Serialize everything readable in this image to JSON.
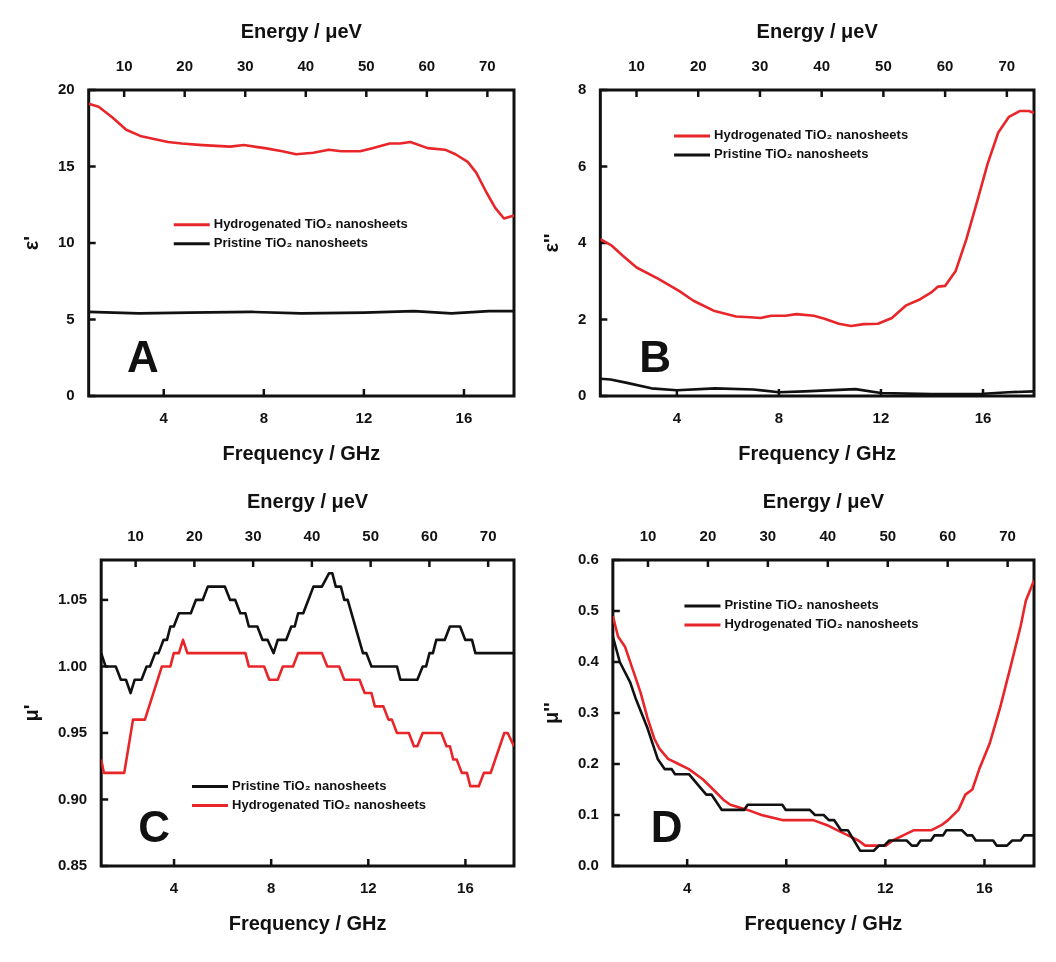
{
  "chart_data": [
    {
      "type": "line",
      "xlabel": "Frequency / GHz",
      "ylabel": "ε'",
      "x2label": "Energy / μeV",
      "xlim": [
        1,
        18
      ],
      "xticks": [
        4,
        8,
        12,
        16
      ],
      "x2lim": [
        4.14,
        74.4
      ],
      "x2ticks": [
        10,
        20,
        30,
        40,
        50,
        60,
        70
      ],
      "ylim": [
        0,
        20
      ],
      "yticks": [
        0,
        5,
        10,
        15,
        20
      ],
      "legend": "center",
      "annotations": [
        "A"
      ],
      "series": [
        {
          "name": "Hydrogenated TiO₂ nanosheets",
          "color": "#e8262a",
          "x": [
            1,
            1.4,
            1.95,
            2.5,
            3.06,
            3.61,
            4.17,
            4.72,
            5.55,
            6.66,
            7.2,
            8.04,
            8.74,
            9.29,
            9.98,
            10.6,
            11.1,
            11.85,
            12.34,
            13.03,
            13.44,
            13.86,
            14.55,
            15.24,
            15.66,
            16.15,
            16.49,
            16.9,
            17.25,
            17.6,
            18
          ],
          "values": [
            19.1,
            18.9,
            18.2,
            17.4,
            17.0,
            16.8,
            16.6,
            16.5,
            16.4,
            16.3,
            16.4,
            16.2,
            16.0,
            15.8,
            15.9,
            16.1,
            16.0,
            16.0,
            16.2,
            16.5,
            16.5,
            16.6,
            16.2,
            16.1,
            15.8,
            15.3,
            14.6,
            13.3,
            12.3,
            11.6,
            11.8
          ]
        },
        {
          "name": "Pristine TiO₂ nanosheets",
          "color": "#111111",
          "x": [
            1,
            3,
            5,
            7.5,
            9.5,
            12,
            14,
            15.5,
            17,
            18
          ],
          "values": [
            5.5,
            5.4,
            5.45,
            5.5,
            5.4,
            5.45,
            5.55,
            5.4,
            5.55,
            5.55
          ]
        }
      ]
    },
    {
      "type": "line",
      "xlabel": "Frequency / GHz",
      "ylabel": "ε''",
      "x2label": "Energy / μeV",
      "xlim": [
        1,
        18
      ],
      "xticks": [
        4,
        8,
        12,
        16
      ],
      "x2lim": [
        4.14,
        74.4
      ],
      "x2ticks": [
        10,
        20,
        30,
        40,
        50,
        60,
        70
      ],
      "ylim": [
        0,
        8
      ],
      "yticks": [
        0,
        2,
        4,
        6,
        8
      ],
      "legend": "top",
      "annotations": [
        "B"
      ],
      "series": [
        {
          "name": "Hydrogenated TiO₂ nanosheets",
          "color": "#e8262a",
          "x": [
            1,
            1.45,
            1.86,
            2.42,
            3.26,
            4.1,
            4.65,
            5.48,
            6.32,
            6.87,
            7.29,
            7.7,
            8.26,
            8.68,
            9.37,
            9.79,
            10.35,
            10.83,
            11.32,
            11.88,
            12.43,
            12.99,
            13.54,
            13.96,
            14.24,
            14.52,
            14.93,
            15.35,
            15.77,
            16.18,
            16.6,
            17.02,
            17.44,
            17.8,
            18
          ],
          "values": [
            4.1,
            3.93,
            3.68,
            3.36,
            3.07,
            2.74,
            2.49,
            2.22,
            2.08,
            2.06,
            2.04,
            2.1,
            2.1,
            2.14,
            2.1,
            2.02,
            1.89,
            1.83,
            1.88,
            1.89,
            2.04,
            2.37,
            2.53,
            2.7,
            2.86,
            2.88,
            3.27,
            4.1,
            5.08,
            6.07,
            6.89,
            7.3,
            7.45,
            7.45,
            7.4
          ]
        },
        {
          "name": "Pristine TiO₂ nanosheets",
          "color": "#111111",
          "x": [
            1,
            1.4,
            2,
            3,
            4,
            5.5,
            7,
            8,
            9,
            11,
            12,
            14,
            16,
            17,
            18
          ],
          "values": [
            0.45,
            0.43,
            0.35,
            0.2,
            0.15,
            0.2,
            0.17,
            0.1,
            0.12,
            0.18,
            0.08,
            0.05,
            0.06,
            0.1,
            0.12
          ]
        }
      ]
    },
    {
      "type": "line",
      "xlabel": "Frequency / GHz",
      "ylabel": "μ'",
      "x2label": "Energy / μeV",
      "xlim": [
        1,
        18
      ],
      "xticks": [
        4,
        8,
        12,
        16
      ],
      "x2lim": [
        4.14,
        74.4
      ],
      "x2ticks": [
        10,
        20,
        30,
        40,
        50,
        60,
        70
      ],
      "ylim": [
        0.85,
        1.08
      ],
      "yticks": [
        0.85,
        {
          "value": 0.9,
          "label": "0.90"
        },
        0.95,
        {
          "value": 1,
          "label": "1.00"
        },
        1.05
      ],
      "legend": "bottom",
      "annotations": [
        "C"
      ],
      "series": [
        {
          "name": "Pristine TiO₂ nanosheets",
          "color": "#111111",
          "x": [
            1,
            1.18,
            1.6,
            1.81,
            2.02,
            2.21,
            2.38,
            2.66,
            2.87,
            3.01,
            3.22,
            3.36,
            3.57,
            3.71,
            3.85,
            3.99,
            4.2,
            4.69,
            4.9,
            5.18,
            5.39,
            6.09,
            6.31,
            6.52,
            6.73,
            6.94,
            7.08,
            7.43,
            7.64,
            7.85,
            8.1,
            8.27,
            8.62,
            8.83,
            8.97,
            9.11,
            9.32,
            9.53,
            9.74,
            10.09,
            10.38,
            10.52,
            10.66,
            10.87,
            11.01,
            11.15,
            11.78,
            11.92,
            12.13,
            13.18,
            13.32,
            14.02,
            14.24,
            14.38,
            14.52,
            14.66,
            14.8,
            15.15,
            15.36,
            15.78,
            15.99,
            16.27,
            16.41,
            18
          ],
          "values": [
            1.01,
            1,
            1,
            0.99,
            0.99,
            0.98,
            0.99,
            0.99,
            1,
            1,
            1.01,
            1.01,
            1.02,
            1.02,
            1.03,
            1.03,
            1.04,
            1.04,
            1.05,
            1.05,
            1.06,
            1.06,
            1.05,
            1.05,
            1.04,
            1.04,
            1.03,
            1.03,
            1.02,
            1.02,
            1.01,
            1.02,
            1.02,
            1.03,
            1.03,
            1.04,
            1.04,
            1.05,
            1.06,
            1.06,
            1.07,
            1.07,
            1.06,
            1.06,
            1.05,
            1.05,
            1.01,
            1.01,
            1,
            1,
            0.99,
            0.99,
            1,
            1,
            1.01,
            1.01,
            1.02,
            1.02,
            1.03,
            1.03,
            1.02,
            1.02,
            1.01,
            1.01
          ]
        },
        {
          "name": "Hydrogenated TiO₂ nanosheets",
          "color": "#e8262a",
          "x": [
            1,
            1.11,
            1.95,
            2.31,
            2.8,
            3.5,
            3.85,
            3.99,
            4.2,
            4.37,
            4.55,
            6.94,
            7.08,
            7.71,
            7.92,
            8.27,
            8.48,
            8.9,
            9.11,
            10.09,
            10.31,
            10.8,
            11.01,
            11.64,
            11.85,
            12.13,
            12.27,
            12.62,
            12.83,
            12.97,
            13.18,
            13.67,
            13.88,
            14.02,
            14.24,
            15.01,
            15.22,
            15.36,
            15.5,
            15.64,
            15.85,
            16.06,
            16.2,
            16.55,
            16.76,
            17.04,
            17.6,
            17.74,
            18
          ],
          "values": [
            0.93,
            0.92,
            0.92,
            0.96,
            0.96,
            1,
            1,
            1.01,
            1.01,
            1.02,
            1.01,
            1.01,
            1,
            1,
            0.99,
            0.99,
            1,
            1,
            1.01,
            1.01,
            1,
            1,
            0.99,
            0.99,
            0.98,
            0.98,
            0.97,
            0.97,
            0.96,
            0.96,
            0.95,
            0.95,
            0.94,
            0.94,
            0.95,
            0.95,
            0.94,
            0.94,
            0.93,
            0.93,
            0.92,
            0.92,
            0.91,
            0.91,
            0.92,
            0.92,
            0.95,
            0.95,
            0.94
          ]
        }
      ]
    },
    {
      "type": "line",
      "xlabel": "Frequency / GHz",
      "ylabel": "μ''",
      "x2label": "Energy / μeV",
      "xlim": [
        1,
        18
      ],
      "xticks": [
        4,
        8,
        12,
        16
      ],
      "x2lim": [
        4.14,
        74.4
      ],
      "x2ticks": [
        10,
        20,
        30,
        40,
        50,
        60,
        70
      ],
      "ylim": [
        0,
        0.6
      ],
      "yticks": [
        {
          "value": 0,
          "label": "0.0"
        },
        0.1,
        0.2,
        0.3,
        0.4,
        0.5,
        0.6
      ],
      "legend": "top",
      "annotations": [
        "D"
      ],
      "series": [
        {
          "name": "Pristine TiO₂ nanosheets",
          "color": "#111111",
          "x": [
            1,
            1.28,
            1.7,
            1.91,
            2.4,
            2.81,
            3.09,
            3.37,
            3.51,
            4.07,
            4.42,
            4.77,
            4.98,
            5.4,
            6.3,
            6.44,
            7.84,
            7.98,
            8.95,
            9.16,
            9.51,
            9.72,
            9.93,
            10.21,
            10.49,
            10.98,
            11.53,
            11.74,
            11.95,
            12.16,
            12.86,
            13.07,
            13.28,
            13.42,
            13.84,
            13.98,
            14.33,
            14.46,
            15.09,
            15.3,
            15.51,
            15.65,
            16.35,
            16.49,
            16.91,
            17.12,
            17.46,
            17.6,
            18
          ],
          "values": [
            0.45,
            0.4,
            0.36,
            0.33,
            0.27,
            0.21,
            0.19,
            0.19,
            0.18,
            0.18,
            0.16,
            0.14,
            0.14,
            0.11,
            0.11,
            0.12,
            0.12,
            0.11,
            0.11,
            0.1,
            0.1,
            0.09,
            0.09,
            0.07,
            0.07,
            0.03,
            0.03,
            0.04,
            0.04,
            0.05,
            0.05,
            0.04,
            0.04,
            0.05,
            0.05,
            0.06,
            0.06,
            0.07,
            0.07,
            0.06,
            0.06,
            0.05,
            0.05,
            0.04,
            0.04,
            0.05,
            0.05,
            0.06,
            0.06
          ]
        },
        {
          "name": "Hydrogenated TiO₂ nanosheets",
          "color": "#e8262a",
          "x": [
            1,
            1.21,
            1.49,
            1.84,
            2.12,
            2.4,
            2.67,
            2.88,
            3.23,
            3.65,
            4.07,
            4.63,
            5.05,
            5.46,
            5.74,
            6.44,
            7,
            7.84,
            9.09,
            9.65,
            10.07,
            10.49,
            10.91,
            11.19,
            12.02,
            12.3,
            12.72,
            13.14,
            13.84,
            14.26,
            14.53,
            14.95,
            15.23,
            15.51,
            15.79,
            16.21,
            16.63,
            17.05,
            17.46,
            17.67,
            18
          ],
          "values": [
            0.49,
            0.45,
            0.43,
            0.38,
            0.34,
            0.29,
            0.25,
            0.23,
            0.21,
            0.2,
            0.19,
            0.17,
            0.15,
            0.13,
            0.12,
            0.11,
            0.1,
            0.09,
            0.09,
            0.08,
            0.07,
            0.06,
            0.05,
            0.04,
            0.04,
            0.05,
            0.06,
            0.07,
            0.07,
            0.08,
            0.09,
            0.11,
            0.14,
            0.15,
            0.19,
            0.24,
            0.31,
            0.39,
            0.47,
            0.52,
            0.56
          ]
        }
      ]
    }
  ]
}
